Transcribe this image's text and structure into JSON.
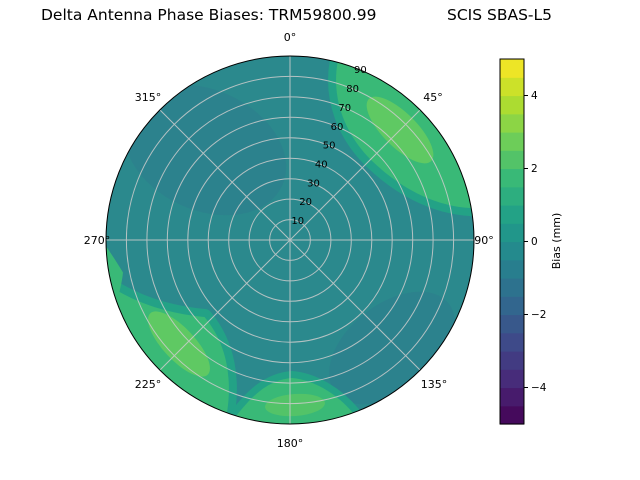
{
  "title": {
    "part1": "Delta Antenna Phase Biases: TRM59800.99",
    "part2": "SCIS SBAS-L5",
    "full": "Delta Antenna Phase Biases: TRM59800.99     SCIS SBAS-L5"
  },
  "chart_data": {
    "type": "heatmap",
    "subtype": "polar-contour-antenna-skyplot",
    "title": "Delta Antenna Phase Biases: TRM59800.99     SCIS SBAS-L5",
    "colormap": "viridis",
    "legend_position": "right-colorbar",
    "grid": true,
    "angular_axis": {
      "direction": "clockwise-from-top",
      "tick_values_deg": [
        0,
        45,
        90,
        135,
        180,
        225,
        270,
        315
      ],
      "tick_labels": [
        "0°",
        "45°",
        "90°",
        "135°",
        "180°",
        "225°",
        "270°",
        "315°"
      ]
    },
    "radial_axis": {
      "range": [
        0,
        90
      ],
      "tick_values": [
        10,
        20,
        30,
        40,
        50,
        60,
        70,
        80,
        90
      ],
      "tick_labels": [
        "10",
        "20",
        "30",
        "40",
        "50",
        "60",
        "70",
        "80",
        "90"
      ],
      "label_position_deg": 22.5
    },
    "colorbar": {
      "label": "Bias (mm)",
      "range": [
        -5,
        5
      ],
      "tick_values": [
        4,
        2,
        0,
        -2,
        -4
      ],
      "tick_labels": [
        "4",
        "2",
        "0",
        "−2",
        "−4"
      ],
      "band_colors_bottom_to_top": [
        "#450a5c",
        "#471b6c",
        "#472c7a",
        "#423b82",
        "#3e4a89",
        "#38588b",
        "#32668e",
        "#2d728e",
        "#287e8e",
        "#248a8d",
        "#21968a",
        "#23a286",
        "#2dae7f",
        "#39b977",
        "#53c368",
        "#6dcd59",
        "#8cd545",
        "#acdc31",
        "#cce129",
        "#ede526"
      ]
    },
    "regions": [
      {
        "name": "background-disc",
        "bias_mm": 0.5,
        "note": "dominant teal level across most azimuths/elevations"
      },
      {
        "name": "green-patch-top-right",
        "azimuth_deg": [
          20,
          80
        ],
        "zenith_deg": [
          55,
          90
        ],
        "bias_mm": 2.0
      },
      {
        "name": "green-patch-bottom-left",
        "azimuth_deg": [
          200,
          255
        ],
        "zenith_deg": [
          55,
          90
        ],
        "bias_mm": 2.0
      },
      {
        "name": "green-patch-bottom",
        "azimuth_deg": [
          160,
          197
        ],
        "zenith_deg": [
          70,
          90
        ],
        "bias_mm": 1.5
      },
      {
        "name": "green-sliver-left",
        "azimuth_deg": [
          250,
          268
        ],
        "zenith_deg": [
          82,
          90
        ],
        "bias_mm": 1.0
      },
      {
        "name": "dark-teal-patch-top-left",
        "azimuth_deg": [
          290,
          10
        ],
        "zenith_deg": [
          30,
          75
        ],
        "bias_mm": -0.5
      },
      {
        "name": "dark-teal-patch-bottom-right",
        "azimuth_deg": [
          120,
          160
        ],
        "zenith_deg": [
          40,
          75
        ],
        "bias_mm": -0.5
      }
    ]
  },
  "colors": {
    "figure_background": "#ffffff",
    "base_teal": "#2b898d",
    "dark_teal": "#2d7b8e",
    "halo_green": "#23a286",
    "mid_green": "#39b977",
    "soft_green": "#53c368",
    "core_green": "#5fc963",
    "grid": "#cccccc",
    "spine": "#000000"
  }
}
